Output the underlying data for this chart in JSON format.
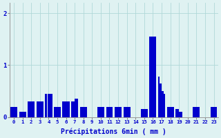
{
  "xlabel": "Précipitations 6min ( mm )",
  "background_color": "#dff2f2",
  "bar_color": "#0000cc",
  "ylim": [
    0,
    2.2
  ],
  "yticks": [
    0,
    1,
    2
  ],
  "xlim": [
    -0.5,
    23.5
  ],
  "xticks": [
    0,
    1,
    2,
    3,
    4,
    5,
    6,
    7,
    8,
    9,
    10,
    11,
    12,
    13,
    14,
    15,
    16,
    17,
    18,
    19,
    20,
    21,
    22,
    23
  ],
  "grid_color": "#b0d8d8",
  "values": [
    0.2,
    0.1,
    0.3,
    0.3,
    0.3,
    0.3,
    0.3,
    0.3,
    0.3,
    0.3,
    0.45,
    0.45,
    0.45,
    0.2,
    0.2,
    0.3,
    0.3,
    0.3,
    0.3,
    0.35,
    0.2,
    0.0,
    0.2,
    0.2,
    0.2,
    0.2,
    0.2,
    0.2,
    0.2,
    0.2,
    0.0,
    0.15,
    1.55,
    0.78,
    0.65,
    0.5,
    0.45,
    0.2,
    0.15,
    0.1,
    0.0,
    0.2,
    0.0,
    0.2
  ],
  "hours": [
    0,
    1,
    2,
    2,
    2,
    2,
    2,
    2,
    3,
    3,
    4,
    4,
    4,
    5,
    5,
    6,
    6,
    6,
    7,
    7,
    8,
    9,
    10,
    10,
    11,
    12,
    12,
    12,
    12,
    13,
    14,
    15,
    16,
    17,
    17,
    17,
    17,
    18,
    19,
    19,
    20,
    21,
    22,
    23
  ]
}
